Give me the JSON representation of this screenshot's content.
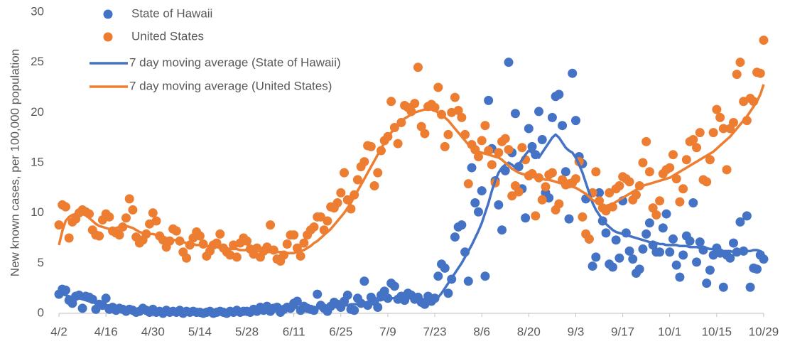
{
  "chart_data": {
    "type": "line",
    "ylabel": "New known cases, per 100,000 population",
    "categories": [
      "4/2",
      null,
      null,
      null,
      null,
      null,
      null,
      null,
      null,
      null,
      null,
      null,
      null,
      null,
      "4/16",
      null,
      null,
      null,
      null,
      null,
      null,
      null,
      null,
      null,
      null,
      null,
      null,
      null,
      "4/30",
      null,
      null,
      null,
      null,
      null,
      null,
      null,
      null,
      null,
      null,
      null,
      null,
      null,
      "5/14",
      null,
      null,
      null,
      null,
      null,
      null,
      null,
      null,
      null,
      null,
      null,
      null,
      null,
      "5/28",
      null,
      null,
      null,
      null,
      null,
      null,
      null,
      null,
      null,
      null,
      null,
      null,
      null,
      "6/11",
      null,
      null,
      null,
      null,
      null,
      null,
      null,
      null,
      null,
      null,
      null,
      null,
      null,
      "6/25",
      null,
      null,
      null,
      null,
      null,
      null,
      null,
      null,
      null,
      null,
      null,
      null,
      null,
      "7/9",
      null,
      null,
      null,
      null,
      null,
      null,
      null,
      null,
      null,
      null,
      null,
      null,
      null,
      "7/23",
      null,
      null,
      null,
      null,
      null,
      null,
      null,
      null,
      null,
      null,
      null,
      null,
      null,
      "8/6",
      null,
      null,
      null,
      null,
      null,
      null,
      null,
      null,
      null,
      null,
      null,
      null,
      null,
      "8/20",
      null,
      null,
      null,
      null,
      null,
      null,
      null,
      null,
      null,
      null,
      null,
      null,
      null,
      "9/3",
      null,
      null,
      null,
      null,
      null,
      null,
      null,
      null,
      null,
      null,
      null,
      null,
      null,
      "9/17",
      null,
      null,
      null,
      null,
      null,
      null,
      null,
      null,
      null,
      null,
      null,
      null,
      null,
      "10/1",
      null,
      null,
      null,
      null,
      null,
      null,
      null,
      null,
      null,
      null,
      null,
      null,
      null,
      "10/15",
      null,
      null,
      null,
      null,
      null,
      null,
      null,
      null,
      null,
      null,
      null,
      null,
      null,
      "10/29"
    ],
    "ylim": [
      0,
      30
    ],
    "yticks": [
      0,
      5,
      10,
      15,
      20,
      25,
      30
    ],
    "legend": "top-left",
    "series": [
      {
        "name": "State of Hawaii",
        "color": "#4472c4",
        "style": "marker",
        "values": [
          1.9,
          2.4,
          2.3,
          1.3,
          1.0,
          1.7,
          1.8,
          0.5,
          1.7,
          1.6,
          1.4,
          0.4,
          0.9,
          0.8,
          1.5,
          0.4,
          0.6,
          0.3,
          0.5,
          0.4,
          0.2,
          0.4,
          0.3,
          0.1,
          0.2,
          0.5,
          0.3,
          0.1,
          0.4,
          0.1,
          0.2,
          0.0,
          0.3,
          0.1,
          0.2,
          0.1,
          0.3,
          0.0,
          0.2,
          0.1,
          0.2,
          0.1,
          0.1,
          0.0,
          0.1,
          0.2,
          0.0,
          0.1,
          0.2,
          0.1,
          0.0,
          0.2,
          0.1,
          0.3,
          0.1,
          0.2,
          0.2,
          0.1,
          0.4,
          0.2,
          0.6,
          0.3,
          0.7,
          0.2,
          0.5,
          0.6,
          0.1,
          0.4,
          0.6,
          0.5,
          1.0,
          1.2,
          0.3,
          0.7,
          0.5,
          0.4,
          0.3,
          1.9,
          0.8,
          0.5,
          0.2,
          0.7,
          1.1,
          0.9,
          0.6,
          1.2,
          1.8,
          0.4,
          0.3,
          1.5,
          1.0,
          3.2,
          0.8,
          1.6,
          1.2,
          0.6,
          1.8,
          2.2,
          1.5,
          3.0,
          2.7,
          1.4,
          1.7,
          1.3,
          2.0,
          1.8,
          1.4,
          1.6,
          1.1,
          0.9,
          1.7,
          1.2,
          1.5,
          3.7,
          4.9,
          4.5,
          2.0,
          3.4,
          7.6,
          8.6,
          8.8,
          6.1,
          3.2,
          14.5,
          11.0,
          10.1,
          12.2,
          3.7,
          21.2,
          16.4,
          13.2,
          10.8,
          8.3,
          14.2,
          25.0,
          16.0,
          19.9,
          14.6,
          12.4,
          9.5,
          18.4,
          16.6,
          15.8,
          20.1,
          17.3,
          12.0,
          11.5,
          19.5,
          21.6,
          21.8,
          18.7,
          14.1,
          9.4,
          23.9,
          19.2,
          15.6,
          14.9,
          11.4,
          7.4,
          4.7,
          5.6,
          12.0,
          9.2,
          8.0,
          4.9,
          4.6,
          7.3,
          5.5,
          11.2,
          8.0,
          6.2,
          5.4,
          4.0,
          4.4,
          6.4,
          7.9,
          9.0,
          6.8,
          6.1,
          6.1,
          8.5,
          9.9,
          6.1,
          7.4,
          4.8,
          3.6,
          5.8,
          7.7,
          7.2,
          11.0,
          5.1,
          7.1,
          6.3,
          3.0,
          4.3,
          5.8,
          6.5,
          6.0,
          2.6,
          5.8,
          5.5,
          7.0,
          6.1,
          9.1,
          6.2,
          9.7,
          2.6,
          4.5,
          4.4,
          5.8,
          5.4
        ]
      },
      {
        "name": "United States",
        "color": "#ed7d31",
        "style": "marker",
        "values": [
          8.8,
          10.8,
          10.6,
          7.5,
          9.1,
          9.4,
          10.0,
          10.3,
          10.1,
          9.9,
          8.3,
          7.8,
          7.7,
          9.3,
          9.9,
          9.6,
          8.2,
          8.0,
          7.8,
          8.6,
          9.5,
          11.4,
          10.3,
          7.6,
          7.0,
          7.3,
          7.9,
          8.9,
          10.0,
          9.2,
          7.7,
          7.3,
          6.6,
          7.2,
          8.4,
          8.2,
          7.2,
          6.1,
          5.5,
          6.8,
          7.5,
          8.1,
          7.7,
          6.9,
          5.7,
          6.2,
          6.8,
          7.0,
          7.9,
          6.5,
          6.1,
          5.8,
          6.8,
          5.6,
          7.0,
          7.5,
          7.2,
          6.4,
          5.9,
          6.5,
          5.6,
          6.2,
          6.6,
          8.8,
          6.3,
          5.4,
          5.2,
          5.8,
          6.9,
          7.8,
          7.8,
          6.5,
          5.7,
          7.0,
          7.8,
          8.3,
          8.6,
          9.6,
          9.6,
          8.3,
          9.2,
          10.6,
          10.5,
          11.0,
          12.0,
          14.0,
          11.3,
          10.4,
          11.8,
          13.3,
          14.6,
          15.1,
          16.7,
          16.6,
          12.7,
          14.0,
          16.2,
          17.2,
          17.6,
          21.1,
          18.5,
          16.9,
          19.0,
          20.7,
          20.5,
          20.1,
          20.9,
          24.5,
          18.6,
          17.9,
          20.6,
          20.8,
          20.5,
          22.5,
          19.8,
          16.6,
          17.8,
          20.0,
          21.5,
          20.2,
          19.5,
          17.8,
          12.9,
          16.8,
          16.3,
          15.6,
          17.2,
          18.7,
          16.2,
          14.8,
          13.0,
          16.0,
          17.1,
          17.4,
          16.3,
          11.7,
          12.7,
          12.1,
          16.5,
          15.3,
          13.7,
          13.9,
          9.7,
          13.5,
          11.3,
          12.6,
          13.8,
          14.0,
          10.3,
          10.9,
          13.3,
          12.8,
          12.9,
          13.0,
          13.4,
          15.1,
          9.6,
          7.9,
          7.4,
          12.0,
          14.1,
          11.2,
          10.5,
          10.2,
          12.0,
          10.6,
          12.4,
          12.7,
          13.6,
          13.4,
          13.1,
          11.3,
          11.8,
          12.7,
          15.0,
          17.1,
          14.1,
          10.5,
          9.8,
          11.2,
          13.9,
          14.3,
          14.5,
          15.8,
          13.4,
          11.1,
          12.4,
          15.3,
          17.1,
          17.3,
          16.5,
          18.0,
          13.3,
          13.1,
          15.3,
          18.0,
          20.3,
          19.5,
          18.4,
          14.3,
          18.4,
          19.0,
          23.8,
          25.0,
          21.1,
          19.2,
          21.4,
          21.1,
          24.0,
          23.9,
          27.2
        ]
      },
      {
        "name": "7 day moving average (State of Hawaii)",
        "color": "#4472c4",
        "style": "line",
        "values": [
          2.0,
          1.9,
          1.8,
          1.7,
          1.6,
          1.6,
          1.5,
          1.4,
          1.3,
          1.2,
          1.1,
          1.0,
          0.9,
          0.9,
          0.8,
          0.8,
          0.7,
          0.6,
          0.6,
          0.5,
          0.5,
          0.4,
          0.4,
          0.4,
          0.3,
          0.3,
          0.3,
          0.3,
          0.3,
          0.3,
          0.2,
          0.2,
          0.2,
          0.2,
          0.2,
          0.2,
          0.2,
          0.2,
          0.2,
          0.2,
          0.1,
          0.1,
          0.1,
          0.1,
          0.1,
          0.1,
          0.1,
          0.1,
          0.1,
          0.1,
          0.1,
          0.1,
          0.2,
          0.2,
          0.2,
          0.2,
          0.2,
          0.2,
          0.2,
          0.3,
          0.3,
          0.3,
          0.4,
          0.4,
          0.4,
          0.5,
          0.5,
          0.5,
          0.5,
          0.5,
          0.5,
          0.6,
          0.6,
          0.7,
          0.7,
          0.7,
          0.6,
          0.6,
          0.6,
          0.6,
          0.6,
          0.7,
          0.7,
          0.7,
          0.8,
          0.8,
          0.8,
          0.9,
          0.9,
          0.9,
          1.0,
          1.0,
          1.1,
          1.1,
          1.2,
          1.3,
          1.3,
          1.4,
          1.4,
          1.5,
          1.5,
          1.5,
          1.5,
          1.6,
          1.6,
          1.6,
          1.5,
          1.5,
          1.4,
          1.4,
          1.3,
          1.3,
          1.4,
          1.6,
          2.0,
          2.5,
          3.0,
          3.5,
          4.0,
          4.5,
          5.0,
          5.6,
          6.2,
          6.8,
          7.5,
          8.2,
          9.0,
          10.0,
          11.0,
          12.2,
          13.2,
          14.0,
          14.5,
          14.8,
          15.0,
          14.8,
          14.5,
          14.8,
          15.3,
          15.8,
          16.2,
          16.0,
          15.6,
          15.5,
          16.0,
          16.5,
          17.0,
          17.5,
          17.8,
          17.5,
          17.0,
          16.5,
          16.2,
          16.0,
          15.5,
          14.8,
          14.0,
          13.0,
          12.0,
          11.0,
          10.3,
          9.8,
          9.3,
          8.9,
          8.6,
          8.3,
          8.1,
          8.0,
          7.9,
          7.8,
          7.7,
          7.6,
          7.5,
          7.4,
          7.3,
          7.2,
          7.1,
          7.0,
          7.0,
          6.9,
          6.9,
          6.8,
          6.8,
          6.8,
          6.8,
          6.7,
          6.7,
          6.7,
          6.6,
          6.6,
          6.6,
          6.5,
          6.5,
          6.5,
          6.4,
          6.4,
          6.3,
          6.3,
          6.2,
          6.2,
          6.2,
          6.1,
          6.1,
          6.1,
          6.1,
          6.2,
          6.2,
          6.3,
          6.3,
          6.2,
          6.0
        ]
      },
      {
        "name": "7 day moving average (United States)",
        "color": "#ed7d31",
        "style": "line",
        "values": [
          6.8,
          8.2,
          9.2,
          9.6,
          9.8,
          9.9,
          10.0,
          10.0,
          9.8,
          9.5,
          9.2,
          8.9,
          8.7,
          8.6,
          8.5,
          8.4,
          8.4,
          8.5,
          8.6,
          8.7,
          8.7,
          8.6,
          8.5,
          8.3,
          8.1,
          8.0,
          7.9,
          7.9,
          7.9,
          7.8,
          7.7,
          7.6,
          7.5,
          7.4,
          7.3,
          7.3,
          7.2,
          7.1,
          7.0,
          6.9,
          6.9,
          6.8,
          6.8,
          6.8,
          6.7,
          6.7,
          6.6,
          6.6,
          6.5,
          6.5,
          6.5,
          6.4,
          6.4,
          6.4,
          6.3,
          6.3,
          6.3,
          6.3,
          6.2,
          6.2,
          6.2,
          6.1,
          6.1,
          6.1,
          6.1,
          6.1,
          6.1,
          6.1,
          6.0,
          6.0,
          6.0,
          6.1,
          6.2,
          6.3,
          6.5,
          6.7,
          7.0,
          7.2,
          7.5,
          7.8,
          8.1,
          8.4,
          8.8,
          9.2,
          9.6,
          10.0,
          10.5,
          11.0,
          11.6,
          12.2,
          12.8,
          13.4,
          14.0,
          14.6,
          15.2,
          15.8,
          16.4,
          17.0,
          17.5,
          18.0,
          18.4,
          18.8,
          19.1,
          19.4,
          19.6,
          19.8,
          20.0,
          20.1,
          20.2,
          20.3,
          20.3,
          20.3,
          20.2,
          20.0,
          19.8,
          19.5,
          19.2,
          18.8,
          18.4,
          18.0,
          17.6,
          17.2,
          16.8,
          16.5,
          16.3,
          16.1,
          16.0,
          15.9,
          15.8,
          15.7,
          15.6,
          15.5,
          15.3,
          15.0,
          14.7,
          14.4,
          14.2,
          14.0,
          13.9,
          13.8,
          13.7,
          13.6,
          13.5,
          13.4,
          13.4,
          13.3,
          13.3,
          13.2,
          13.1,
          13.0,
          12.9,
          12.8,
          12.7,
          12.6,
          12.5,
          12.3,
          12.1,
          11.9,
          11.6,
          11.3,
          11.1,
          10.9,
          10.8,
          10.7,
          10.8,
          10.9,
          11.1,
          11.3,
          11.5,
          11.7,
          11.9,
          12.1,
          12.3,
          12.5,
          12.7,
          12.8,
          12.9,
          13.0,
          13.1,
          13.2,
          13.3,
          13.4,
          13.5,
          13.7,
          13.9,
          14.1,
          14.3,
          14.5,
          14.7,
          14.9,
          15.1,
          15.3,
          15.5,
          15.7,
          15.9,
          16.1,
          16.4,
          16.7,
          17.0,
          17.3,
          17.6,
          18.0,
          18.4,
          18.8,
          19.2,
          19.6,
          20.1,
          20.6,
          21.1,
          21.8,
          22.8
        ]
      }
    ]
  }
}
